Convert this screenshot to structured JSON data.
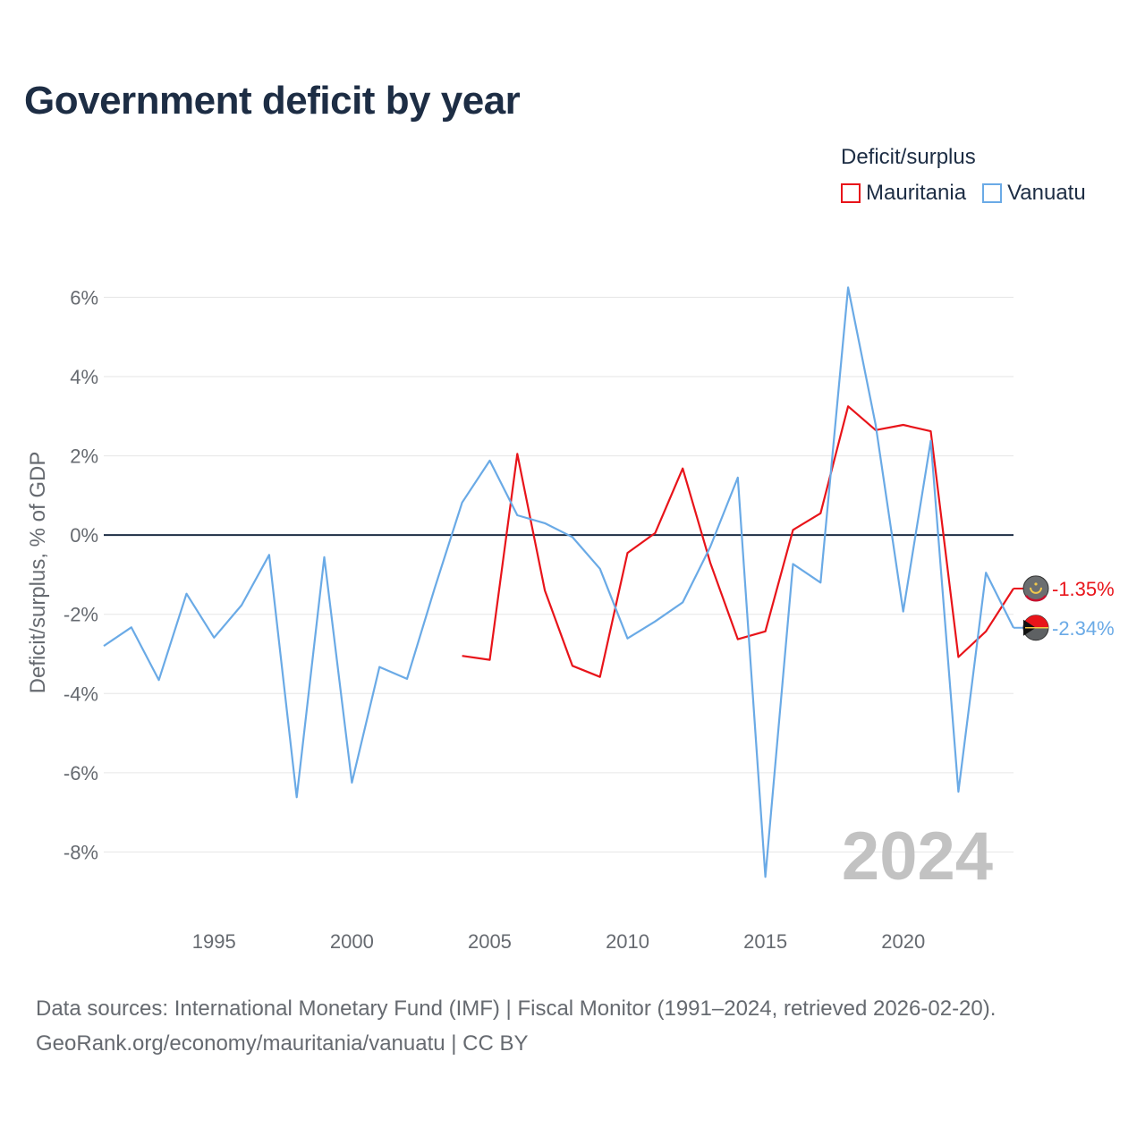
{
  "title": "Government deficit by year",
  "legend": {
    "title": "Deficit/surplus",
    "items": [
      {
        "label": "Mauritania",
        "color": "#e8141a"
      },
      {
        "label": "Vanuatu",
        "color": "#6aaae6"
      }
    ]
  },
  "chart_data": {
    "type": "line",
    "ylabel": "Deficit/surplus, % of GDP",
    "xlabel": "",
    "xlim": [
      1991,
      2024
    ],
    "ylim": [
      -9.3,
      6.8
    ],
    "xticks": [
      1995,
      2000,
      2005,
      2010,
      2015,
      2020
    ],
    "x_tick_labels": [
      "1995",
      "2000",
      "2005",
      "2010",
      "2015",
      "2020"
    ],
    "yticks": [
      6,
      4,
      2,
      0,
      -2,
      -4,
      -6,
      -8
    ],
    "y_tick_labels": [
      "6%",
      "4%",
      "2%",
      "0%",
      "-2%",
      "-4%",
      "-6%",
      "-8%"
    ],
    "watermark_year": "2024",
    "series": [
      {
        "name": "Mauritania",
        "color": "#e8141a",
        "end_label": "-1.35%",
        "points": [
          [
            2004,
            -3.05
          ],
          [
            2005,
            -3.15
          ],
          [
            2006,
            2.05
          ],
          [
            2007,
            -1.4
          ],
          [
            2008,
            -3.3
          ],
          [
            2009,
            -3.58
          ],
          [
            2010,
            -0.45
          ],
          [
            2011,
            0.05
          ],
          [
            2012,
            1.68
          ],
          [
            2013,
            -0.7
          ],
          [
            2014,
            -2.63
          ],
          [
            2015,
            -2.43
          ],
          [
            2016,
            0.13
          ],
          [
            2017,
            0.55
          ],
          [
            2018,
            3.25
          ],
          [
            2019,
            2.65
          ],
          [
            2020,
            2.78
          ],
          [
            2021,
            2.62
          ],
          [
            2022,
            -3.08
          ],
          [
            2023,
            -2.43
          ],
          [
            2024,
            -1.35
          ]
        ]
      },
      {
        "name": "Vanuatu",
        "color": "#6aaae6",
        "end_label": "-2.34%",
        "points": [
          [
            1991,
            -2.8
          ],
          [
            1992,
            -2.33
          ],
          [
            1993,
            -3.66
          ],
          [
            1994,
            -1.48
          ],
          [
            1995,
            -2.59
          ],
          [
            1996,
            -1.77
          ],
          [
            1997,
            -0.5
          ],
          [
            1998,
            -6.62
          ],
          [
            1999,
            -0.56
          ],
          [
            2000,
            -6.25
          ],
          [
            2001,
            -3.33
          ],
          [
            2002,
            -3.63
          ],
          [
            2003,
            -1.35
          ],
          [
            2004,
            0.82
          ],
          [
            2005,
            1.88
          ],
          [
            2006,
            0.5
          ],
          [
            2007,
            0.3
          ],
          [
            2008,
            -0.05
          ],
          [
            2009,
            -0.85
          ],
          [
            2010,
            -2.61
          ],
          [
            2011,
            -2.18
          ],
          [
            2012,
            -1.7
          ],
          [
            2013,
            -0.3
          ],
          [
            2014,
            1.45
          ],
          [
            2015,
            -8.63
          ],
          [
            2016,
            -0.73
          ],
          [
            2017,
            -1.2
          ],
          [
            2018,
            6.25
          ],
          [
            2019,
            2.78
          ],
          [
            2020,
            -1.93
          ],
          [
            2021,
            2.38
          ],
          [
            2022,
            -6.48
          ],
          [
            2023,
            -0.95
          ],
          [
            2024,
            -2.34
          ]
        ]
      }
    ]
  },
  "footer": {
    "line1": "Data sources: International Monetary Fund (IMF) | Fiscal Monitor (1991–2024, retrieved 2026-02-20).",
    "line2": "GeoRank.org/economy/mauritania/vanuatu | CC BY"
  }
}
